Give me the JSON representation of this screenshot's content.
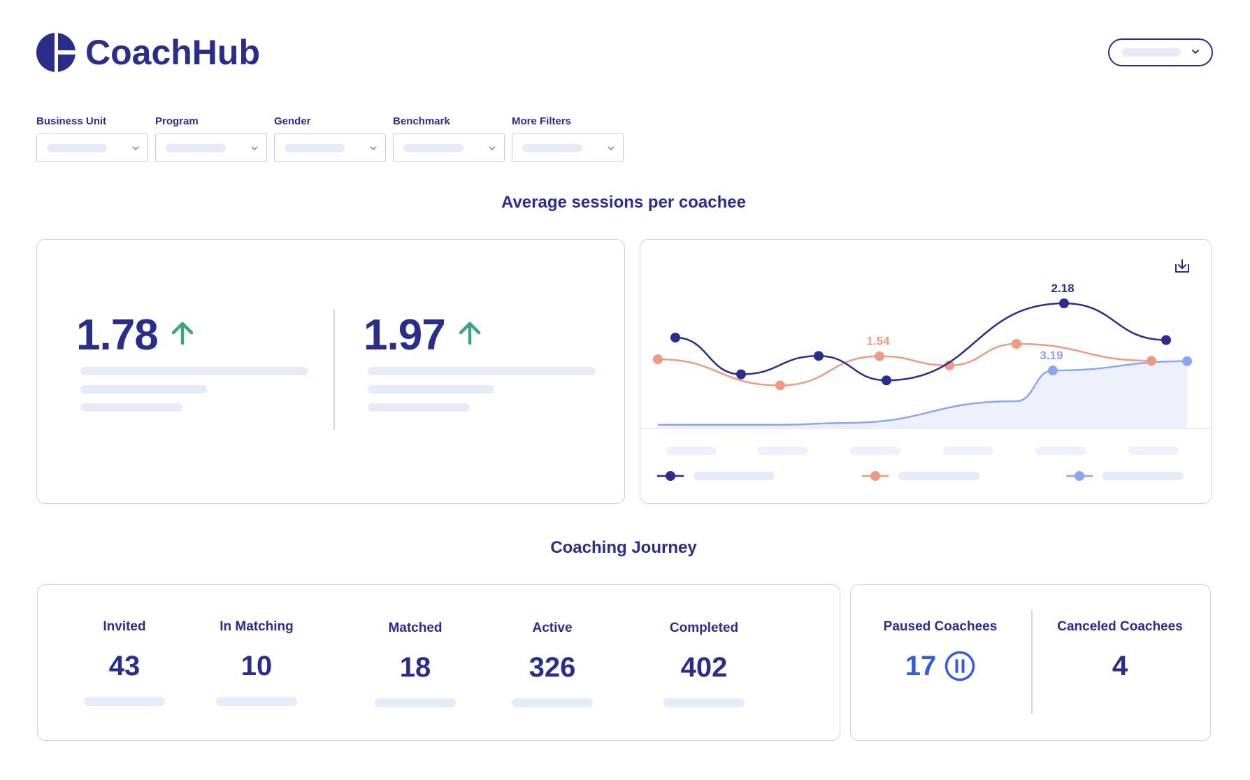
{
  "brand": {
    "name": "CoachHub",
    "color": "#2b2d8a",
    "accent": "#3a5bd9"
  },
  "header": {
    "user_menu_icon": "chevron-down-icon"
  },
  "filters": [
    {
      "label": "Business Unit"
    },
    {
      "label": "Program"
    },
    {
      "label": "Gender"
    },
    {
      "label": "Benchmark"
    },
    {
      "label": "More Filters"
    }
  ],
  "sessions": {
    "title": "Average sessions per coachee",
    "kpis": [
      {
        "value": "1.78",
        "trend": "up",
        "trend_color": "#3aa57f"
      },
      {
        "value": "1.97",
        "trend": "up",
        "trend_color": "#3aa57f"
      }
    ],
    "download_icon": "download-icon"
  },
  "chart_data": {
    "type": "line",
    "series": [
      {
        "color": "#2b2d8a",
        "values": [
          1.9,
          1.6,
          1.75,
          1.55,
          2.18,
          1.88
        ],
        "labels": [
          null,
          null,
          null,
          null,
          "2.18",
          null
        ]
      },
      {
        "color": "#ee9a84",
        "values": [
          1.52,
          1.35,
          1.54,
          1.48,
          1.62,
          1.51
        ],
        "labels": [
          null,
          null,
          "1.54",
          null,
          null,
          null
        ]
      },
      {
        "color": "#8da4ee",
        "area": true,
        "values": [
          0.2,
          0.2,
          0.3,
          1.5,
          3.19,
          3.7
        ],
        "labels": [
          null,
          null,
          null,
          null,
          "3.19",
          null
        ]
      }
    ]
  },
  "journey": {
    "title": "Coaching Journey",
    "stages": [
      {
        "label": "Invited",
        "value": "43"
      },
      {
        "label": "In Matching",
        "value": "10"
      },
      {
        "label": "Matched",
        "value": "18"
      },
      {
        "label": "Active",
        "value": "326"
      },
      {
        "label": "Completed",
        "value": "402"
      }
    ],
    "paused": {
      "label": "Paused Coachees",
      "value": "17",
      "icon": "pause-icon"
    },
    "canceled": {
      "label": "Canceled Coachees",
      "value": "4"
    }
  }
}
